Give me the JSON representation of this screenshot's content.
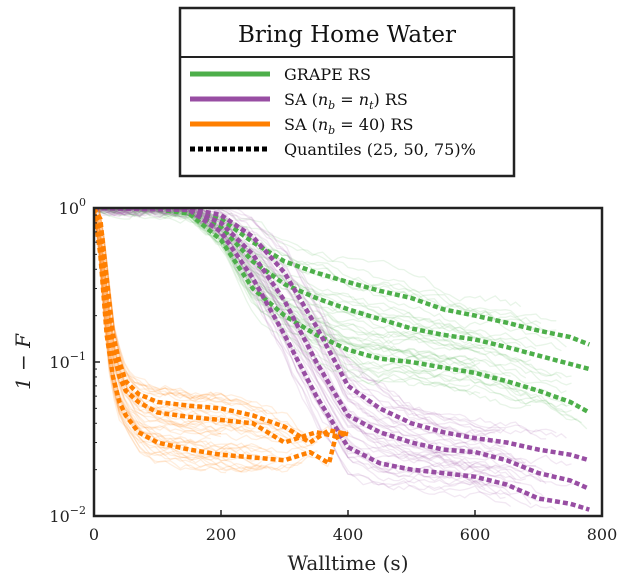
{
  "chart_data": {
    "type": "line",
    "title": "Bring Home Water",
    "xlabel": "Walltime (s)",
    "ylabel": "1 − F",
    "xlim": [
      0,
      800
    ],
    "ylim": [
      0.01,
      1
    ],
    "yscale": "log",
    "grid": false,
    "legend_position": "top-center",
    "x_ticks": [
      0,
      200,
      400,
      600,
      800
    ],
    "x_tick_labels": [
      "0",
      "200",
      "400",
      "600",
      "800"
    ],
    "y_ticks": [
      1,
      0.1,
      0.01
    ],
    "y_tick_labels": [
      {
        "base": "10",
        "exp": "0"
      },
      {
        "base": "10",
        "exp": "−1"
      },
      {
        "base": "10",
        "exp": "−2"
      }
    ],
    "legend": [
      {
        "label": "GRAPE RS",
        "color": "#4daf4a",
        "style": "solid"
      },
      {
        "label": "SA (n_b = n_t) RS",
        "color": "#984ea3",
        "style": "solid"
      },
      {
        "label": "SA (n_b = 40) RS",
        "color": "#ff7f00",
        "style": "solid"
      },
      {
        "label": "Quantiles (25, 50, 75)%",
        "color": "#000000",
        "style": "dotted"
      }
    ],
    "series": [
      {
        "name": "GRAPE RS",
        "color": "#4daf4a",
        "quantiles": [
          {
            "q": 25,
            "x": [
              0,
              100,
              150,
              200,
              250,
              300,
              350,
              400,
              450,
              500,
              550,
              600,
              650,
              700,
              750,
              780
            ],
            "y": [
              1,
              0.98,
              0.92,
              0.62,
              0.3,
              0.2,
              0.15,
              0.12,
              0.105,
              0.1,
              0.092,
              0.085,
              0.075,
              0.065,
              0.055,
              0.047
            ]
          },
          {
            "q": 50,
            "x": [
              0,
              100,
              150,
              200,
              250,
              300,
              350,
              400,
              450,
              500,
              550,
              600,
              650,
              700,
              750,
              780
            ],
            "y": [
              1,
              0.99,
              0.95,
              0.75,
              0.45,
              0.32,
              0.26,
              0.22,
              0.19,
              0.165,
              0.15,
              0.14,
              0.125,
              0.11,
              0.097,
              0.09
            ]
          },
          {
            "q": 75,
            "x": [
              0,
              100,
              150,
              200,
              250,
              300,
              350,
              400,
              450,
              500,
              550,
              600,
              650,
              700,
              750,
              780
            ],
            "y": [
              1,
              0.995,
              0.97,
              0.85,
              0.6,
              0.45,
              0.38,
              0.33,
              0.29,
              0.26,
              0.22,
              0.2,
              0.18,
              0.16,
              0.145,
              0.13
            ]
          }
        ]
      },
      {
        "name": "SA (n_b = n_t) RS",
        "color": "#984ea3",
        "quantiles": [
          {
            "q": 25,
            "x": [
              0,
              150,
              200,
              250,
              300,
              350,
              400,
              450,
              500,
              550,
              600,
              650,
              700,
              750,
              780
            ],
            "y": [
              1,
              0.97,
              0.7,
              0.35,
              0.15,
              0.06,
              0.028,
              0.022,
              0.02,
              0.019,
              0.018,
              0.016,
              0.013,
              0.012,
              0.011
            ]
          },
          {
            "q": 50,
            "x": [
              0,
              150,
              200,
              250,
              300,
              350,
              400,
              450,
              500,
              550,
              600,
              650,
              700,
              750,
              780
            ],
            "y": [
              1,
              0.98,
              0.8,
              0.5,
              0.25,
              0.1,
              0.045,
              0.035,
              0.03,
              0.027,
              0.026,
              0.023,
              0.019,
              0.017,
              0.015
            ]
          },
          {
            "q": 75,
            "x": [
              0,
              150,
              200,
              250,
              300,
              350,
              400,
              450,
              500,
              550,
              600,
              650,
              700,
              750,
              780
            ],
            "y": [
              1,
              0.99,
              0.9,
              0.65,
              0.38,
              0.17,
              0.07,
              0.05,
              0.04,
              0.035,
              0.032,
              0.03,
              0.027,
              0.025,
              0.023
            ]
          }
        ]
      },
      {
        "name": "SA (n_b = 40) RS",
        "color": "#ff7f00",
        "quantiles": [
          {
            "q": 25,
            "x": [
              0,
              10,
              20,
              30,
              40,
              50,
              70,
              100,
              150,
              200,
              250,
              300,
              340,
              370,
              380,
              400
            ],
            "y": [
              1,
              0.5,
              0.15,
              0.08,
              0.055,
              0.045,
              0.035,
              0.03,
              0.027,
              0.025,
              0.024,
              0.023,
              0.026,
              0.022,
              0.032,
              0.035
            ]
          },
          {
            "q": 50,
            "x": [
              0,
              10,
              20,
              30,
              40,
              50,
              70,
              100,
              150,
              200,
              250,
              300,
              350,
              380,
              400
            ],
            "y": [
              1,
              0.7,
              0.25,
              0.12,
              0.08,
              0.065,
              0.055,
              0.047,
              0.044,
              0.042,
              0.04,
              0.03,
              0.035,
              0.033,
              0.035
            ]
          },
          {
            "q": 75,
            "x": [
              0,
              10,
              20,
              30,
              40,
              50,
              70,
              100,
              150,
              200,
              250,
              300,
              340,
              370,
              400
            ],
            "y": [
              1,
              0.85,
              0.35,
              0.15,
              0.1,
              0.075,
              0.062,
              0.055,
              0.052,
              0.05,
              0.045,
              0.038,
              0.03,
              0.036,
              0.034
            ]
          }
        ]
      }
    ]
  }
}
